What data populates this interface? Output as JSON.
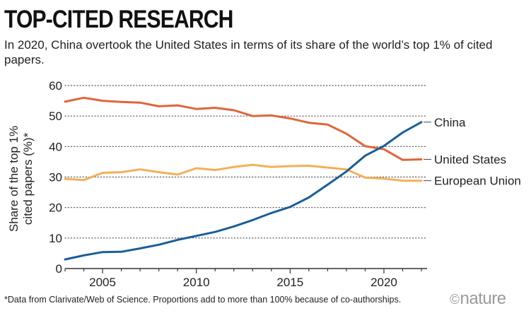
{
  "header": {
    "title": "TOP-CITED RESEARCH",
    "subtitle": "In 2020, China overtook the United States in terms of its share of the world’s top 1% of cited papers."
  },
  "footer": {
    "footnote": "*Data from Clarivate/Web of Science. Proportions add to more than 100% because of co-authorships.",
    "logo_symbol": "©",
    "logo_text": "nature"
  },
  "chart_data": {
    "type": "line",
    "title": "TOP-CITED RESEARCH",
    "subtitle": "In 2020, China overtook the United States in terms of its share of the world’s top 1% of cited papers.",
    "xlabel": "",
    "ylabel": "Share of the top 1% cited papers (%)*",
    "ylabel_lines": [
      "Share of the top 1%",
      "cited papers (%)*"
    ],
    "xlim": [
      2003,
      2022.3
    ],
    "ylim": [
      0,
      60
    ],
    "x_ticks": [
      2005,
      2010,
      2015,
      2020
    ],
    "y_ticks": [
      0,
      10,
      20,
      30,
      40,
      50,
      60
    ],
    "grid": "horizontal-dotted",
    "legend": "direct-labels-right",
    "x": [
      2003,
      2004,
      2005,
      2006,
      2007,
      2008,
      2009,
      2010,
      2011,
      2012,
      2013,
      2014,
      2015,
      2016,
      2017,
      2018,
      2019,
      2020,
      2021,
      2022
    ],
    "series": [
      {
        "name": "China",
        "color": "#1a5e98",
        "values": [
          3,
          4.3,
          5.4,
          5.5,
          6.6,
          7.8,
          9.4,
          10.7,
          12.0,
          13.8,
          15.9,
          18.2,
          20.2,
          23.3,
          27.5,
          31.8,
          37.0,
          40.2,
          44.6,
          48.0
        ]
      },
      {
        "name": "United States",
        "color": "#e0653a",
        "values": [
          54.7,
          56.0,
          55.0,
          54.6,
          54.4,
          53.2,
          53.5,
          52.3,
          52.7,
          51.9,
          50.0,
          50.2,
          49.2,
          47.8,
          47.2,
          44.2,
          40.1,
          39.1,
          35.6,
          35.8
        ]
      },
      {
        "name": "European Union",
        "color": "#f2b05b",
        "values": [
          29.4,
          29.0,
          31.4,
          31.6,
          32.5,
          31.6,
          30.8,
          32.9,
          32.3,
          33.3,
          34.0,
          33.3,
          33.6,
          33.7,
          33.1,
          32.5,
          29.8,
          29.5,
          28.8,
          28.8
        ]
      }
    ]
  }
}
